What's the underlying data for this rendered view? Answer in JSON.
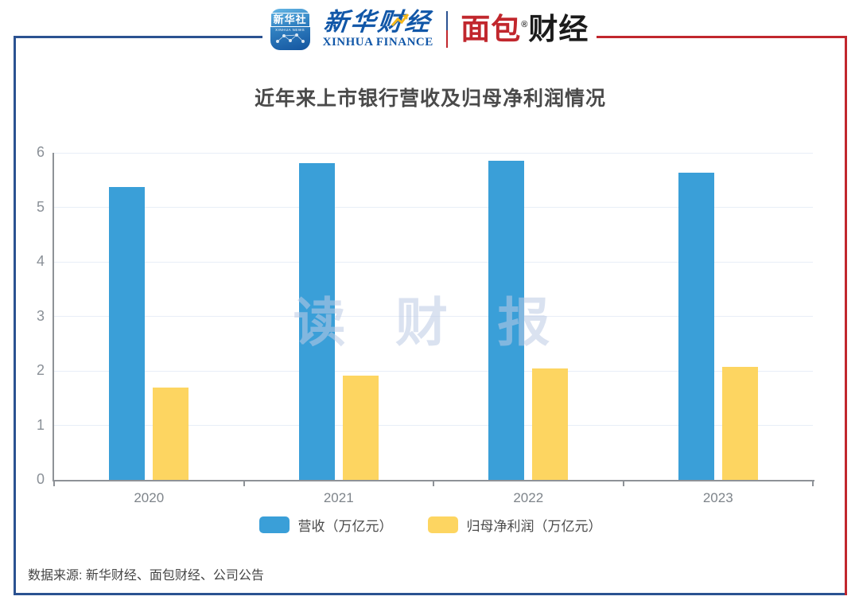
{
  "header": {
    "app_icon": {
      "title": "新华社",
      "subtitle": "XINHUA NEWS"
    },
    "xinhua_finance": {
      "cn": "新华财经",
      "en": "XINHUA FINANCE"
    },
    "mianbao_finance": {
      "cn_red": "面包",
      "cn_dark": "财经",
      "reg": "®"
    }
  },
  "chart_data": {
    "type": "bar",
    "title": "近年来上市银行营收及归母净利润情况",
    "categories": [
      "2020",
      "2021",
      "2022",
      "2023"
    ],
    "series": [
      {
        "name": "营收（万亿元）",
        "color": "#3A9FD8",
        "values": [
          5.37,
          5.81,
          5.85,
          5.64
        ]
      },
      {
        "name": "归母净利润（万亿元）",
        "color": "#FDD561",
        "values": [
          1.69,
          1.91,
          2.05,
          2.08
        ]
      }
    ],
    "xlabel": "",
    "ylabel": "",
    "ylim": [
      0,
      6
    ],
    "yticks": [
      0,
      1,
      2,
      3,
      4,
      5,
      6
    ],
    "grid": true,
    "legend_position": "bottom",
    "watermark": "读 财 报"
  },
  "footer": {
    "source": "数据来源: 新华财经、面包财经、公司公告"
  },
  "colors": {
    "frame_blue": "#2B5291",
    "frame_red": "#C1272D",
    "revenue_blue": "#3A9FD8",
    "profit_yellow": "#FDD561",
    "axis_gray": "#8E9297",
    "grid_line": "#E8EEF7",
    "watermark_blue": "#BDCBE5"
  }
}
